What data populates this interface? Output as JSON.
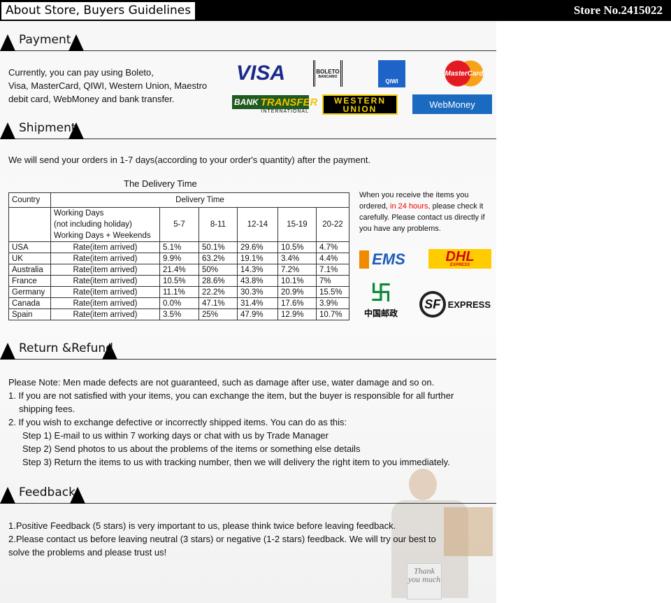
{
  "header": {
    "title": "About Store, Buyers Guidelines",
    "store": "Store No.2415022"
  },
  "payment": {
    "heading": "Payment",
    "text": [
      "Currently, you can pay using Boleto,",
      "Visa, MasterCard, QIWI, Western Union, Maestro",
      "debit card, WebMoney and bank transfer."
    ],
    "logos": {
      "visa": "VISA",
      "boleto": "BOLETO",
      "boleto_sub": "BANCARIO",
      "qiwi": "QIWI",
      "mastercard": "MasterCard",
      "bank": "BANK",
      "transfer": "TRANSFER",
      "international": "INTERNATIONAL",
      "western": "WESTERN",
      "union": "UNION",
      "webmoney": "WebMoney"
    }
  },
  "shipment": {
    "heading": "Shipment",
    "text": "We will send your orders in 1-7 days(according to your order's quantity) after the payment.",
    "table_title": "The Delivery Time",
    "table": {
      "country_header": "Country",
      "delivery_header": "Delivery Time",
      "sub_label": [
        "Working Days",
        "(not including holiday)",
        "Working Days + Weekends"
      ],
      "ranges": [
        "5-7",
        "8-11",
        "12-14",
        "15-19",
        "20-22"
      ],
      "rows": [
        {
          "country": "USA",
          "label": "Rate(item arrived)",
          "values": [
            "5.1%",
            "50.1%",
            "29.6%",
            "10.5%",
            "4.7%"
          ]
        },
        {
          "country": "UK",
          "label": "Rate(item arrived)",
          "values": [
            "9.9%",
            "63.2%",
            "19.1%",
            "3.4%",
            "4.4%"
          ]
        },
        {
          "country": "Australia",
          "label": "Rate(item arrived)",
          "values": [
            "21.4%",
            "50%",
            "14.3%",
            "7.2%",
            "7.1%"
          ]
        },
        {
          "country": "France",
          "label": "Rate(item arrived)",
          "values": [
            "10.5%",
            "28.6%",
            "43.8%",
            "10.1%",
            "7%"
          ]
        },
        {
          "country": "Germany",
          "label": "Rate(item arrived)",
          "values": [
            "11.1%",
            "22.2%",
            "30.3%",
            "20.9%",
            "15.5%"
          ]
        },
        {
          "country": "Canada",
          "label": "Rate(item arrived)",
          "values": [
            "0.0%",
            "47.1%",
            "31.4%",
            "17.6%",
            "3.9%"
          ]
        },
        {
          "country": "Spain",
          "label": "Rate(item arrived)",
          "values": [
            "3.5%",
            "25%",
            "47.9%",
            "12.9%",
            "10.7%"
          ]
        }
      ]
    },
    "note_a": "When you receive the items you ordered, ",
    "note_red": "in 24 hours,",
    "note_b": " please check it carefully. Please contact us directly if you have any problems.",
    "carriers": {
      "ems": "EMS",
      "dhl": "DHL",
      "dhl_sub": "EXPRESS",
      "chinapost": "中国邮政",
      "sf": "SF",
      "sf_express": "EXPRESS"
    }
  },
  "refund": {
    "heading": "Return &Refund",
    "lines": [
      "Please Note: Men made defects are not guaranteed, such as damage after use, water  damage and so on.",
      "1. If you are not satisfied with your items, you can exchange the item, but the buyer is responsible for all further",
      "    shipping fees.",
      "2. If you wish to exchange defective or incorrectly shipped items. You can do as this:",
      "Step 1) E-mail to us within 7 working days or chat with us by Trade Manager",
      "Step 2) Send photos to us about the problems of the items or something else details",
      "Step 3) Return the items to us with tracking number, then we will delivery the right item to you immediately."
    ]
  },
  "feedback": {
    "heading": "Feedback",
    "lines": [
      "1.Positive Feedback (5 stars) is very important to us, please think twice before leaving feedback.",
      "2.Please contact us before leaving neutral (3 stars) or negative (1-2 stars) feedback. We will try our best to",
      "   solve the problems and please trust us!"
    ],
    "sign": "Thank you much"
  }
}
